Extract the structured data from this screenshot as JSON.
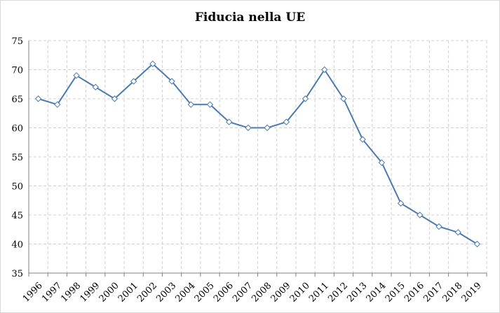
{
  "chart_data": {
    "type": "line",
    "title": "Fiducia nella UE",
    "xlabel": "",
    "ylabel": "",
    "categories": [
      "1996",
      "1997",
      "1998",
      "1999",
      "2000",
      "2001",
      "2002",
      "2003",
      "2004",
      "2005",
      "2006",
      "2007",
      "2008",
      "2009",
      "2010",
      "2011",
      "2012",
      "2013",
      "2014",
      "2015",
      "2016",
      "2017",
      "2018",
      "2019"
    ],
    "series": [
      {
        "values": [
          65,
          64,
          69,
          67,
          65,
          68,
          71,
          68,
          64,
          64,
          61,
          60,
          60,
          61,
          65,
          70,
          65,
          58,
          54,
          47,
          45,
          43,
          42,
          40
        ]
      }
    ],
    "ylim": [
      35,
      75
    ],
    "yticks": [
      35,
      40,
      45,
      50,
      55,
      60,
      65,
      70,
      75
    ],
    "grid": true,
    "legend": "none",
    "colors": {
      "line": "#4a7ab0",
      "marker_fill": "#ffffff",
      "marker_stroke": "#4a7ab0",
      "grid": "#d0d0d0",
      "axis": "#808080"
    }
  }
}
